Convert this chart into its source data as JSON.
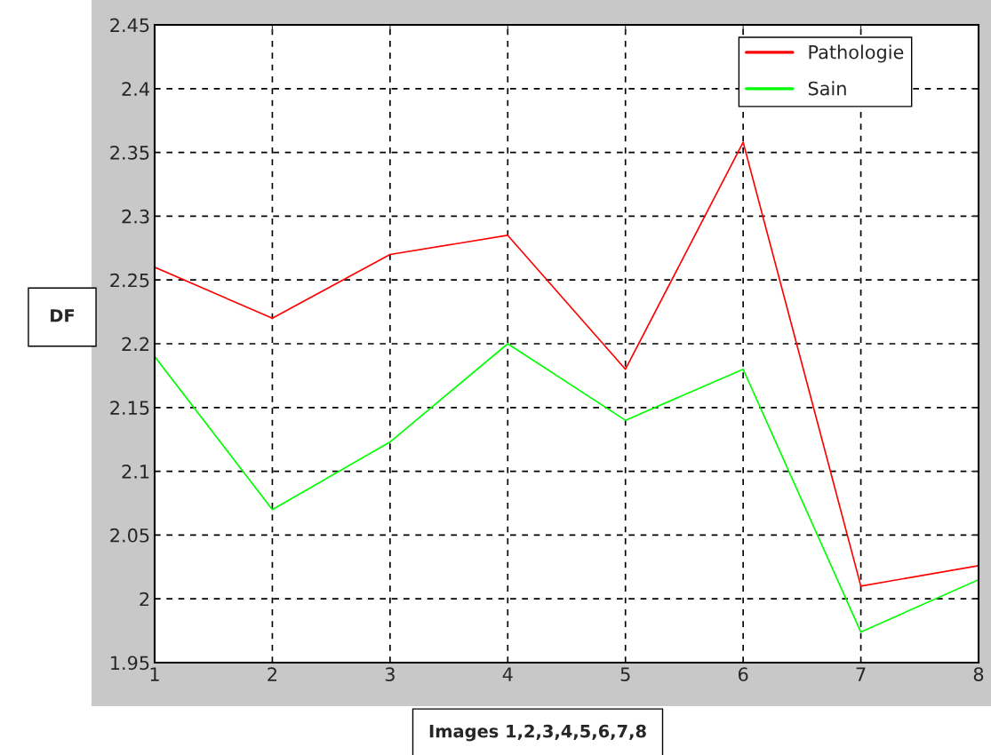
{
  "chart_data": {
    "type": "line",
    "xlabel": "Images 1,2,3,4,5,6,7,8",
    "ylabel": "DF",
    "x": [
      1,
      2,
      3,
      4,
      5,
      6,
      7,
      8
    ],
    "series": [
      {
        "name": "Pathologie",
        "color": "#ff0000",
        "values": [
          2.26,
          2.22,
          2.27,
          2.285,
          2.18,
          2.358,
          2.01,
          2.026
        ]
      },
      {
        "name": "Sain",
        "color": "#00ff00",
        "values": [
          2.19,
          2.07,
          2.123,
          2.2,
          2.14,
          2.18,
          1.974,
          2.015
        ]
      }
    ],
    "xlim": [
      1,
      8
    ],
    "xticks": [
      1,
      2,
      3,
      4,
      5,
      6,
      7,
      8
    ],
    "ylim": [
      1.95,
      2.45
    ],
    "yticks": [
      1.95,
      2,
      2.05,
      2.1,
      2.15,
      2.2,
      2.25,
      2.3,
      2.35,
      2.4,
      2.45
    ],
    "grid": true,
    "legend": "top right",
    "marker": "none",
    "line_style": "solid"
  }
}
